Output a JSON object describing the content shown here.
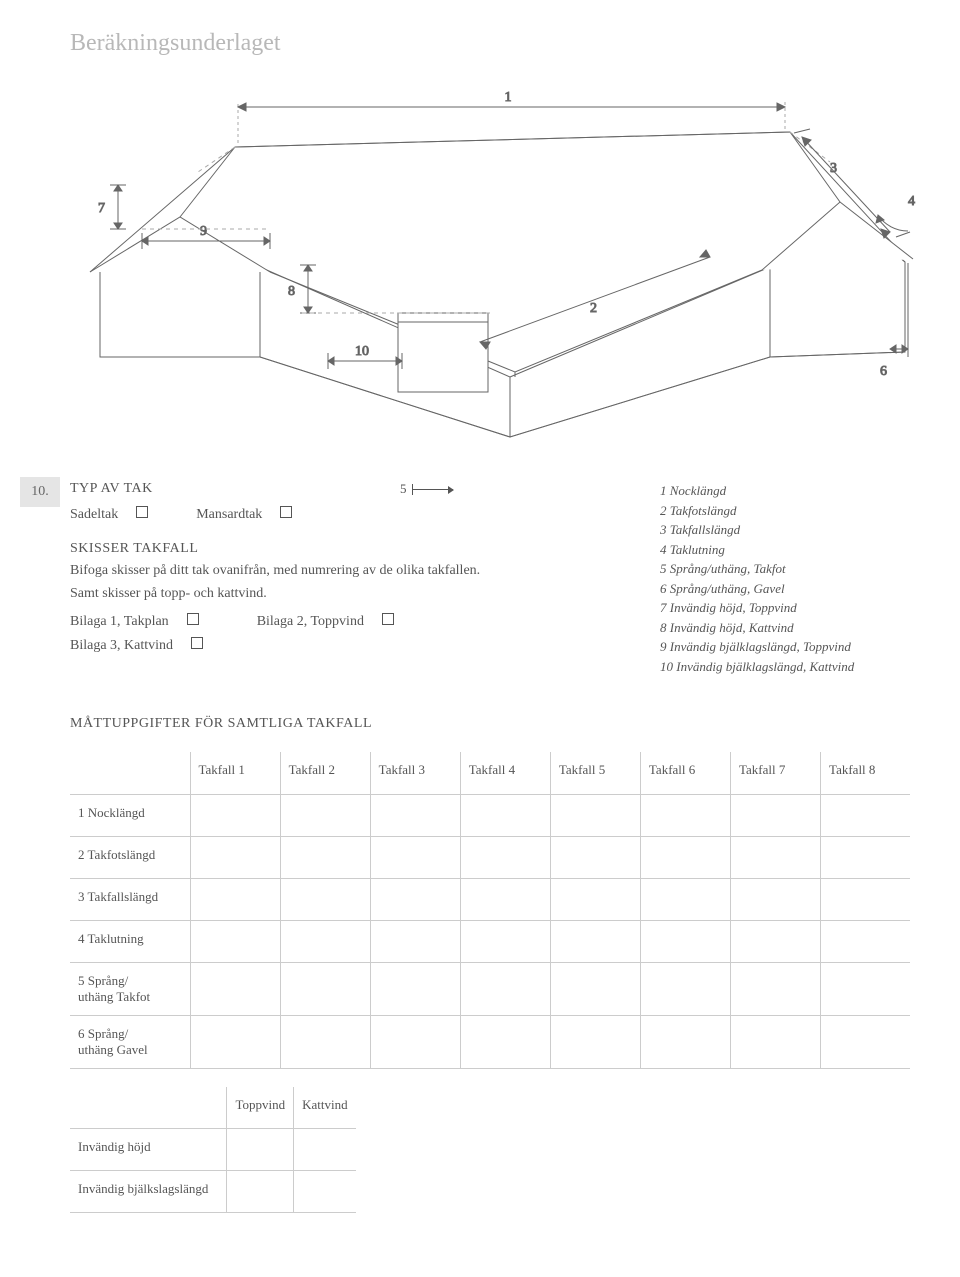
{
  "title": "Beräkningsunderlaget",
  "diagram": {
    "type": "diagram",
    "stroke": "#555555",
    "dash": "#999999",
    "bg": "#ffffff",
    "labels": [
      "1",
      "2",
      "3",
      "4",
      "5",
      "6",
      "7",
      "8",
      "9",
      "10"
    ]
  },
  "section": {
    "num": "10.",
    "typavtak": "TYP AV TAK",
    "sadeltak": "Sadeltak",
    "mansardtak": "Mansardtak",
    "skisser_title": "SKISSER TAKFALL",
    "skisser_line1": "Bifoga skisser på ditt tak ovanifrån, med numrering av de olika takfallen.",
    "skisser_line2": "Samt skisser på topp- och kattvind.",
    "bilaga1": "Bilaga 1, Takplan",
    "bilaga2": "Bilaga 2, Toppvind",
    "bilaga3": "Bilaga 3, Kattvind",
    "measure5": "5"
  },
  "legend": {
    "l1": "1 Nocklängd",
    "l2": "2 Takfotslängd",
    "l3": "3 Takfallslängd",
    "l4": "4 Taklutning",
    "l5": "5 Språng/uthäng, Takfot",
    "l6": "6 Språng/uthäng, Gavel",
    "l7": "7 Invändig höjd, Toppvind",
    "l8": "8 Invändig höjd, Kattvind",
    "l9": "9 Invändig bjälklagslängd, Toppvind",
    "l10": "10 Invändig bjälklagslängd, Kattvind"
  },
  "table": {
    "title": "MÅTTUPPGIFTER FÖR SAMTLIGA TAKFALL",
    "cols": [
      "Takfall 1",
      "Takfall 2",
      "Takfall 3",
      "Takfall 4",
      "Takfall 5",
      "Takfall 6",
      "Takfall 7",
      "Takfall 8"
    ],
    "rows": [
      "1 Nocklängd",
      "2 Takfotslängd",
      "3 Takfallslängd",
      "4 Taklutning",
      "5 Språng/\nuthäng Takfot",
      "6 Språng/\nuthäng Gavel"
    ],
    "sub_cols": [
      "Toppvind",
      "Kattvind"
    ],
    "sub_rows": [
      "Invändig höjd",
      "Invändig bjälkslagslängd"
    ]
  }
}
